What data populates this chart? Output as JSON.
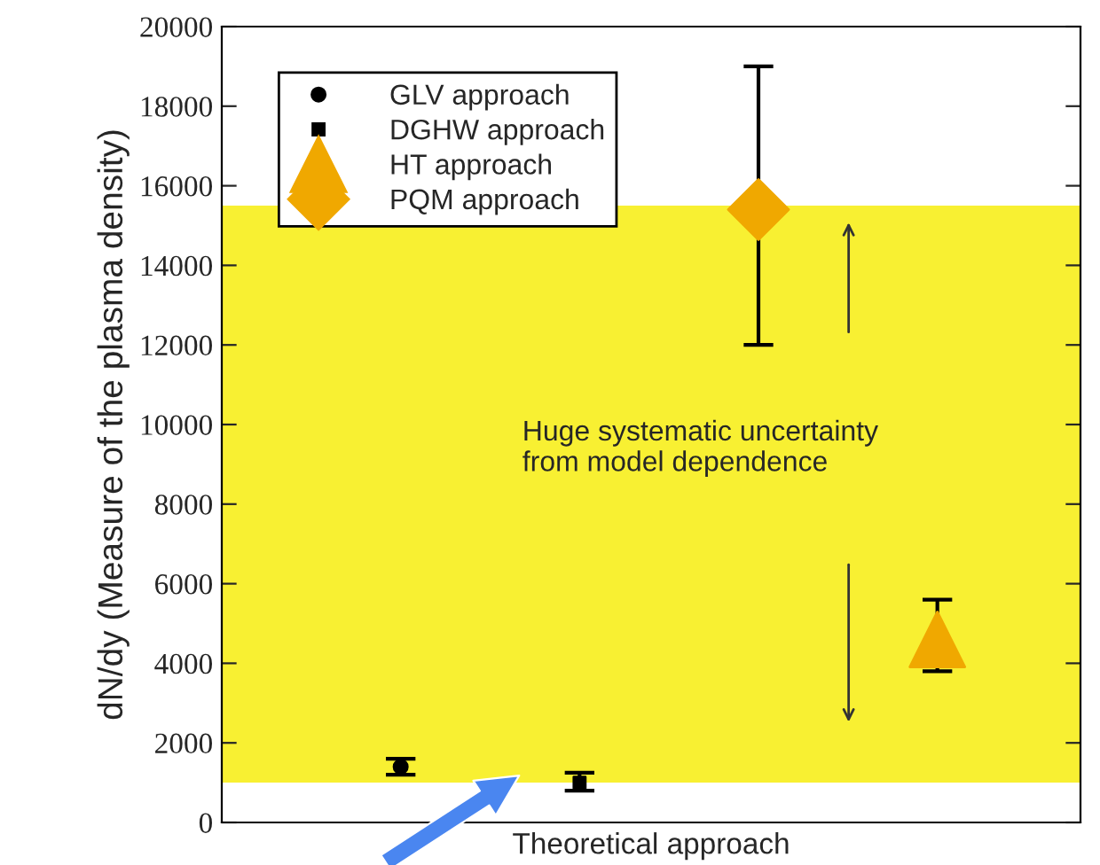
{
  "chart_data": {
    "type": "scatter",
    "xlabel": "Theoretical approach",
    "ylabel": "dN/dy (Measure of the plasma density)",
    "categories": [
      null,
      null,
      null,
      null
    ],
    "series": [
      {
        "name": "GLV approach",
        "color": "#000000",
        "marker": "circle",
        "values": [
          1400,
          null,
          null,
          null
        ],
        "errors": [
          [
            1200,
            1600
          ],
          null,
          null,
          null
        ]
      },
      {
        "name": "DGHW approach",
        "color": "#000000",
        "marker": "square",
        "values": [
          null,
          1000,
          null,
          null
        ],
        "errors": [
          null,
          [
            800,
            1250
          ],
          null,
          null
        ]
      },
      {
        "name": "HT approach",
        "color": "#f0a800",
        "marker": "triangle",
        "values": [
          null,
          null,
          null,
          4600
        ],
        "errors": [
          null,
          null,
          null,
          [
            3800,
            5600
          ]
        ]
      },
      {
        "name": "PQM approach",
        "color": "#f0a800",
        "marker": "diamond",
        "values": [
          null,
          null,
          15400,
          null
        ],
        "errors": [
          null,
          null,
          [
            12000,
            19000
          ],
          null
        ]
      }
    ],
    "bands": [
      {
        "axis": "y",
        "from": 1000,
        "to": 15500,
        "color": "#f8f032"
      }
    ],
    "annotations": [
      "Huge systematic uncertainty\nfrom model dependence"
    ],
    "ylim": [
      0,
      20000
    ],
    "yticks": [
      0,
      2000,
      4000,
      6000,
      8000,
      10000,
      12000,
      14000,
      16000,
      18000,
      20000
    ],
    "tick_labels": "y",
    "grid": false,
    "legend": "top left"
  }
}
